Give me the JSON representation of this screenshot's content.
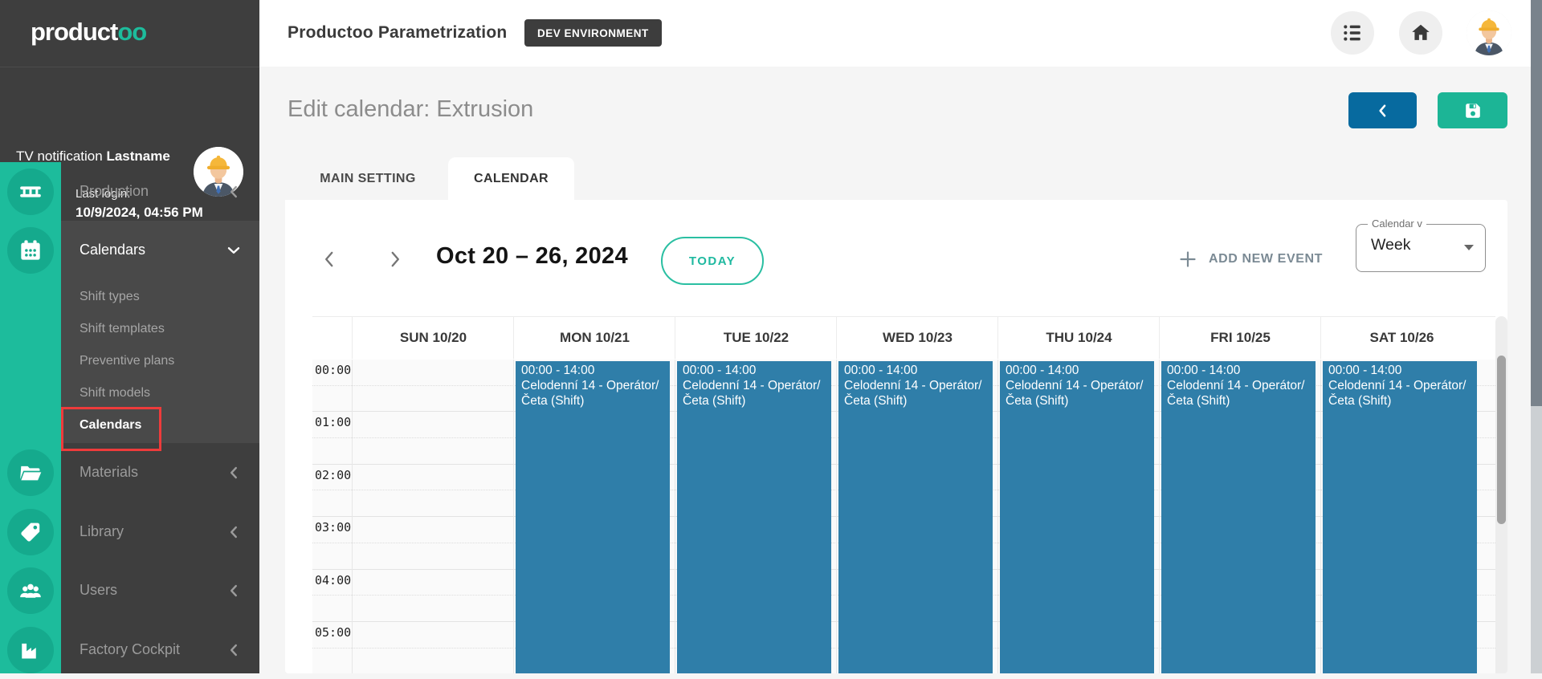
{
  "brand": {
    "logo_main": "product",
    "logo_accent": "oo"
  },
  "topbar": {
    "title": "Productoo Parametrization",
    "env_badge": "DEV ENVIRONMENT"
  },
  "user_panel": {
    "name": "TV notification ",
    "surname": "Lastname",
    "last_login_label": "Last login:",
    "last_login_value": "10/9/2024, 04:56 PM"
  },
  "sidebar": {
    "items": [
      {
        "label": "Production",
        "icon": "conveyor-icon",
        "chevron": "left",
        "active": false
      },
      {
        "label": "Calendars",
        "icon": "calendar-icon",
        "chevron": "down",
        "active": true
      },
      {
        "label": "Materials",
        "icon": "folder-icon",
        "chevron": "left",
        "active": false
      },
      {
        "label": "Library",
        "icon": "tag-icon",
        "chevron": "left",
        "active": false
      },
      {
        "label": "Users",
        "icon": "users-icon",
        "chevron": "left",
        "active": false
      },
      {
        "label": "Factory Cockpit",
        "icon": "factory-icon",
        "chevron": "left",
        "active": false
      }
    ],
    "calendars_submenu": [
      {
        "label": "Shift types",
        "active": false,
        "highlighted": false
      },
      {
        "label": "Shift templates",
        "active": false,
        "highlighted": false
      },
      {
        "label": "Preventive plans",
        "active": false,
        "highlighted": false
      },
      {
        "label": "Shift models",
        "active": false,
        "highlighted": false
      },
      {
        "label": "Calendars",
        "active": true,
        "highlighted": true
      }
    ]
  },
  "page": {
    "title": "Edit calendar: Extrusion"
  },
  "tabs": [
    {
      "label": "MAIN SETTING",
      "active": false
    },
    {
      "label": "CALENDAR",
      "active": true
    }
  ],
  "calendar": {
    "range_label": "Oct 20 – 26, 2024",
    "today_button": "TODAY",
    "add_event_button": "ADD NEW EVENT",
    "view_select": {
      "label": "Calendar v",
      "value": "Week"
    },
    "days": [
      "SUN 10/20",
      "MON 10/21",
      "TUE 10/22",
      "WED 10/23",
      "THU 10/24",
      "FRI 10/25",
      "SAT 10/26"
    ],
    "times": [
      "00:00",
      "01:00",
      "02:00",
      "03:00",
      "04:00",
      "05:00"
    ],
    "event_template": {
      "time_range": "00:00 - 14:00",
      "title": "Celodenní 14 - Operátor/Četa (Shift)"
    },
    "events_by_day": [
      0,
      1,
      1,
      1,
      1,
      1,
      1
    ]
  },
  "colors": {
    "teal": "#1dbc9c",
    "teal_dark": "#15aa8d",
    "save_green": "#1cb596",
    "back_blue": "#076a9f",
    "event_blue": "#2f7ea9",
    "highlight_red": "#ee3b3b",
    "sidebar_bg": "#3e3e3e",
    "sidebar_section_bg": "#494949"
  }
}
